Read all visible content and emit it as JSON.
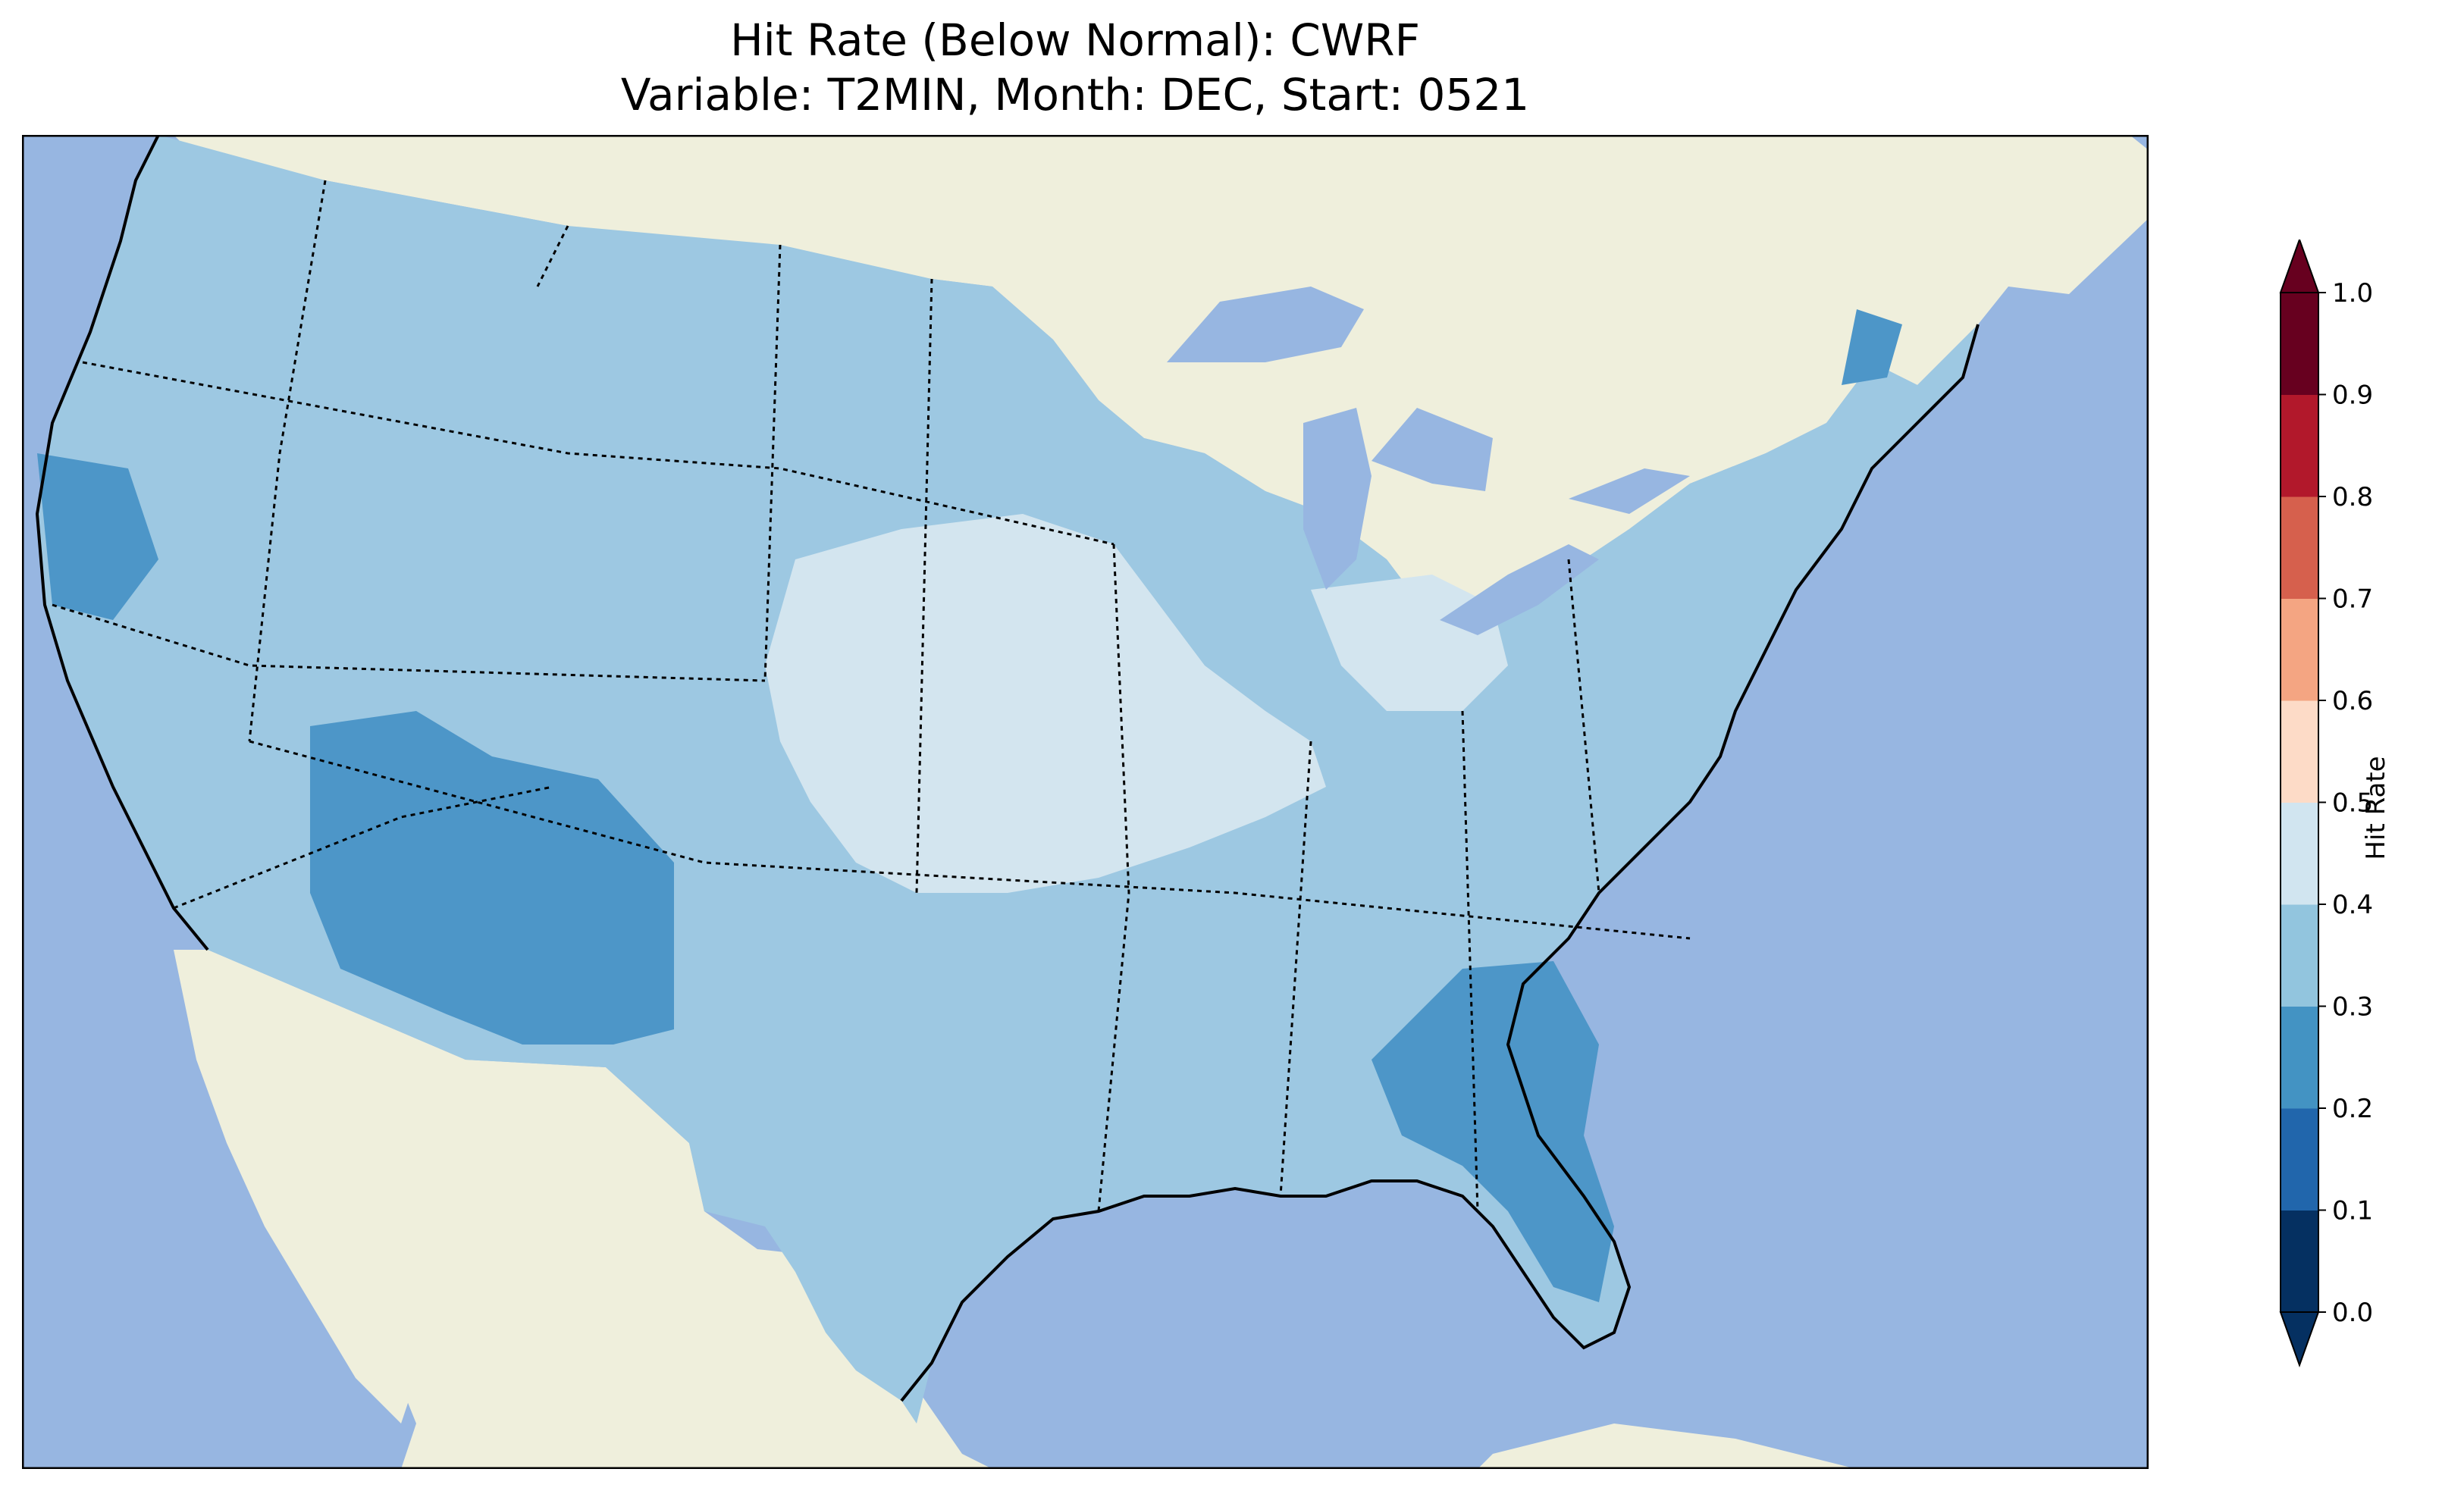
{
  "title_line1": "Hit Rate (Below Normal): CWRF",
  "title_line2": "Variable: T2MIN, Month: DEC, Start: 0521",
  "map": {
    "projection_extent_lon": [
      -125,
      -65
    ],
    "projection_extent_lat": [
      23,
      51
    ],
    "colors": {
      "ocean": "#97b6e1",
      "land": "#efefdc",
      "coastline": "#000000"
    }
  },
  "colorbar": {
    "label": "Hit Rate",
    "extend": "both",
    "ticks": [
      "0.0",
      "0.1",
      "0.2",
      "0.3",
      "0.4",
      "0.5",
      "0.6",
      "0.7",
      "0.8",
      "0.9",
      "1.0"
    ],
    "bins": [
      {
        "range": [
          0.0,
          0.1
        ],
        "color": "#053061"
      },
      {
        "range": [
          0.1,
          0.2
        ],
        "color": "#2166ac"
      },
      {
        "range": [
          0.2,
          0.3
        ],
        "color": "#4393c3"
      },
      {
        "range": [
          0.3,
          0.4
        ],
        "color": "#92c5de"
      },
      {
        "range": [
          0.4,
          0.5
        ],
        "color": "#d1e5f0"
      },
      {
        "range": [
          0.5,
          0.6
        ],
        "color": "#fddbc7"
      },
      {
        "range": [
          0.6,
          0.7
        ],
        "color": "#f4a582"
      },
      {
        "range": [
          0.7,
          0.8
        ],
        "color": "#d6604d"
      },
      {
        "range": [
          0.8,
          0.9
        ],
        "color": "#b2182b"
      },
      {
        "range": [
          0.9,
          1.0
        ],
        "color": "#67001f"
      }
    ]
  },
  "dominant_hit_rate_bin": [
    0.3,
    0.4
  ],
  "regions": [
    {
      "area": "Most of the conterminous US",
      "hit_rate_bin": [
        0.3,
        0.4
      ]
    },
    {
      "area": "Central Plains, Missouri, Arkansas, Oklahoma, Ohio Valley",
      "hit_rate_bin": [
        0.4,
        0.5
      ]
    },
    {
      "area": "Northern California coast",
      "hit_rate_bin": [
        0.2,
        0.3
      ]
    },
    {
      "area": "Nevada, Utah, Arizona, New Mexico",
      "hit_rate_bin": [
        0.2,
        0.3
      ]
    },
    {
      "area": "Georgia, Florida, Gulf Coast",
      "hit_rate_bin": [
        0.2,
        0.3
      ]
    },
    {
      "area": "Maine coast",
      "hit_rate_bin": [
        0.2,
        0.3
      ]
    }
  ]
}
